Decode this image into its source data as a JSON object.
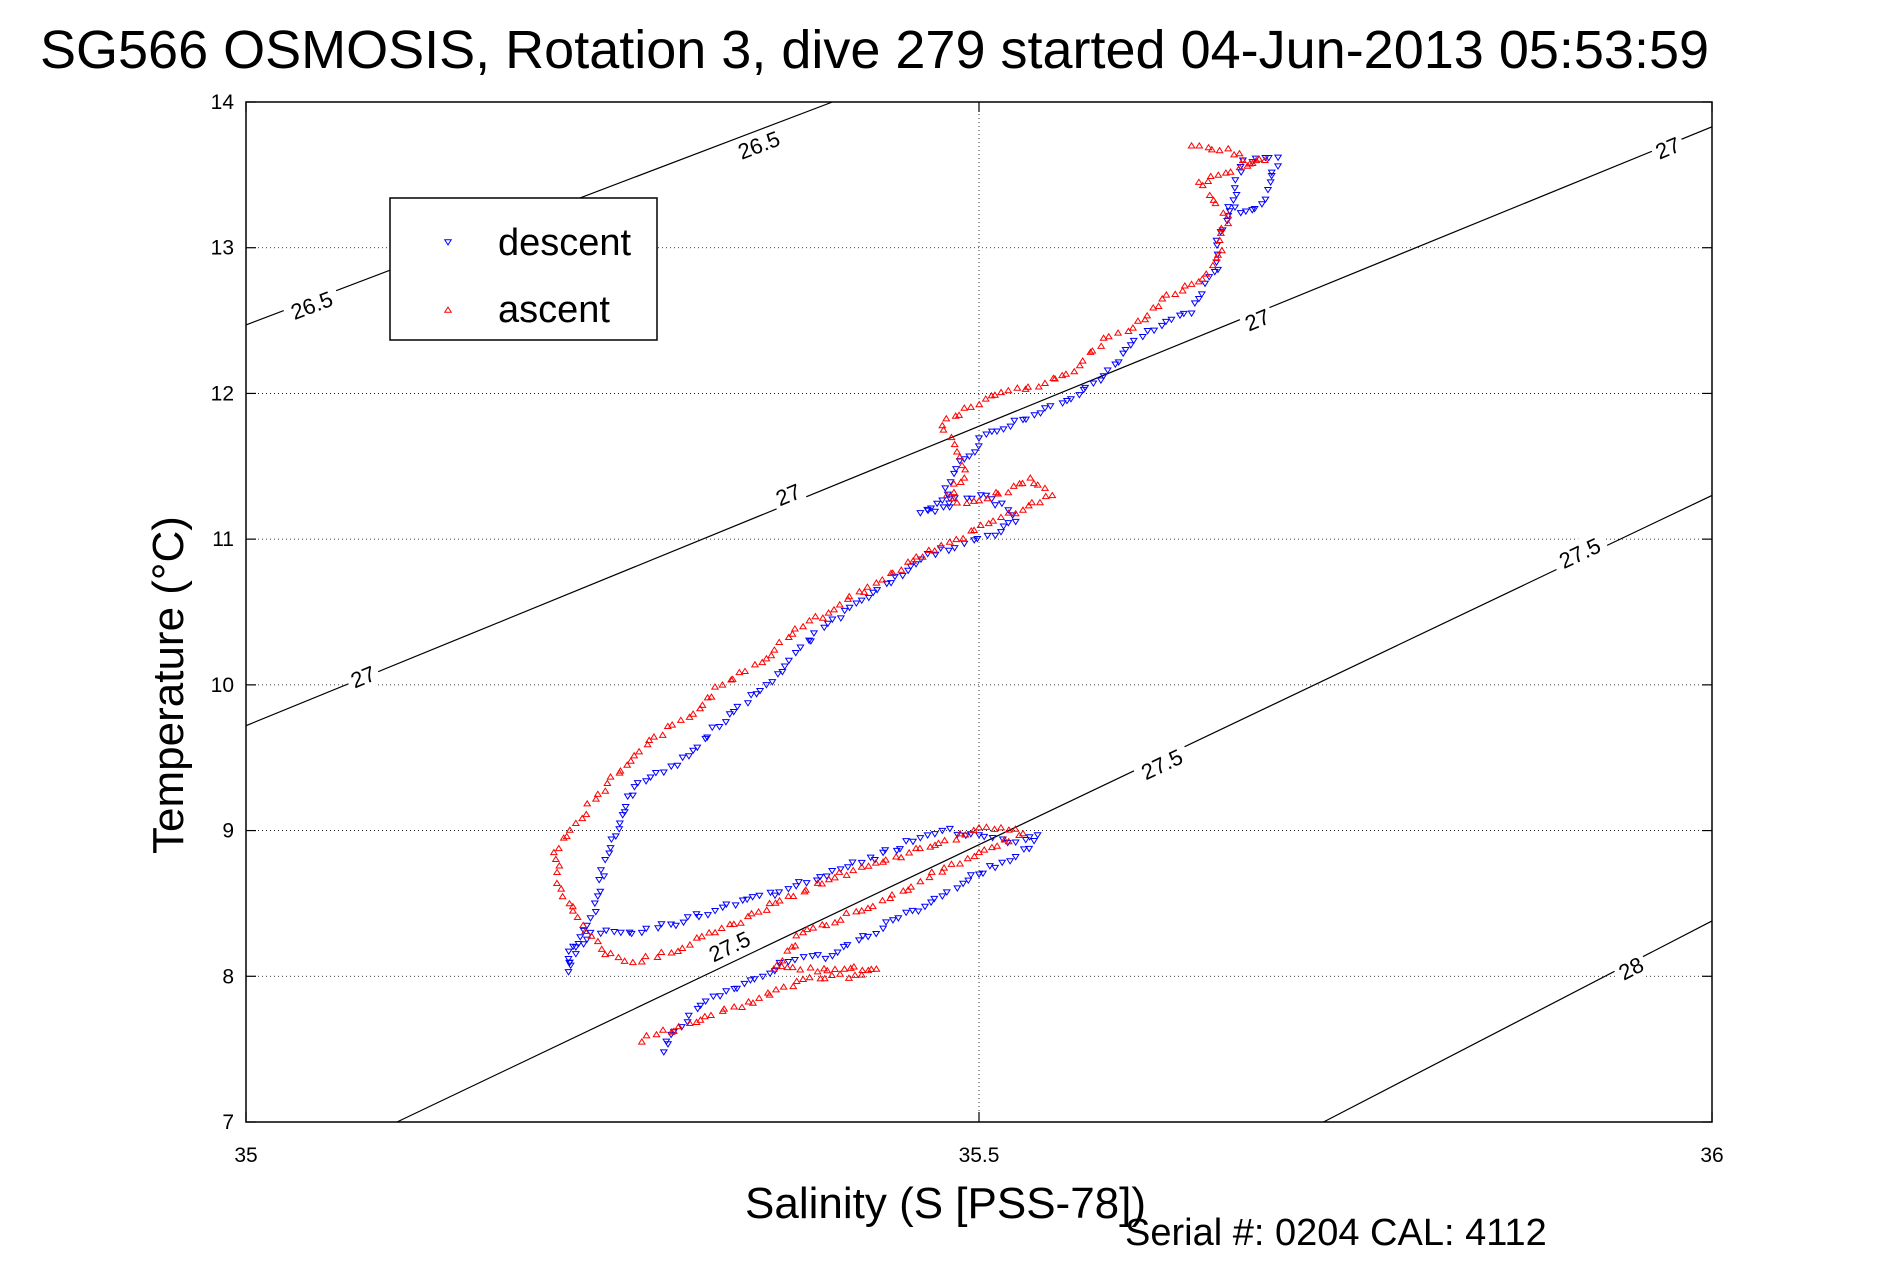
{
  "chart_data": {
    "type": "scatter",
    "title": "SG566 OSMOSIS, Rotation 3, dive 279 started 04-Jun-2013 05:53:59",
    "xlabel": "Salinity (S [PSS-78])",
    "ylabel": "Temperature (°C)",
    "xlim": [
      35,
      36
    ],
    "ylim": [
      7,
      14
    ],
    "xticks": [
      "35",
      "35.5",
      "36"
    ],
    "yticks": [
      "7",
      "8",
      "9",
      "10",
      "11",
      "12",
      "13",
      "14"
    ],
    "grid": true,
    "legend": {
      "position": "top-left",
      "entries": [
        "descent",
        "ascent"
      ]
    },
    "colors": {
      "descent": "#0000ff",
      "ascent": "#ff0000",
      "axis": "#000000",
      "contour": "#000000"
    },
    "density_contours": [
      {
        "level": "26.5",
        "points": [
          [
            35.0,
            12.47
          ],
          [
            35.4,
            14.0
          ]
        ]
      },
      {
        "level": "27",
        "points": [
          [
            35.0,
            9.72
          ],
          [
            36.0,
            13.83
          ]
        ]
      },
      {
        "level": "27.5",
        "points": [
          [
            35.103,
            7.0
          ],
          [
            36.0,
            11.3
          ]
        ]
      },
      {
        "level": "28",
        "points": [
          [
            35.735,
            7.0
          ],
          [
            36.0,
            8.38
          ]
        ]
      }
    ],
    "contour_labels": [
      {
        "text": "26.5",
        "x": 35.35,
        "y": 13.7
      },
      {
        "text": "26.5",
        "x": 35.045,
        "y": 12.6
      },
      {
        "text": "27",
        "x": 35.69,
        "y": 12.5
      },
      {
        "text": "27",
        "x": 35.37,
        "y": 11.3
      },
      {
        "text": "27",
        "x": 35.08,
        "y": 10.05
      },
      {
        "text": "27",
        "x": 35.97,
        "y": 13.68
      },
      {
        "text": "27.5",
        "x": 35.91,
        "y": 10.9
      },
      {
        "text": "27.5",
        "x": 35.625,
        "y": 9.45
      },
      {
        "text": "27.5",
        "x": 35.33,
        "y": 8.2
      },
      {
        "text": "28",
        "x": 35.945,
        "y": 8.05
      }
    ],
    "series": [
      {
        "name": "descent",
        "marker": "triangle-down",
        "x": [
          35.67,
          35.682,
          35.693,
          35.704,
          35.68,
          35.67,
          35.662,
          35.662,
          35.663,
          35.657,
          35.65,
          35.645,
          35.615,
          35.6,
          35.593,
          35.585,
          35.578,
          35.56,
          35.545,
          35.53,
          35.505,
          35.49,
          35.483,
          35.477,
          35.48,
          35.47,
          35.46,
          35.48,
          35.505,
          35.52,
          35.525,
          35.515,
          35.49,
          35.465,
          35.44,
          35.42,
          35.4,
          35.375,
          35.355,
          35.33,
          35.305,
          35.285,
          35.265,
          35.255,
          35.245,
          35.24,
          35.235,
          35.228,
          35.22,
          35.22,
          35.225,
          35.235,
          35.27,
          35.32,
          35.37,
          35.42,
          35.46,
          35.475,
          35.5,
          35.525,
          35.54,
          35.525,
          35.5,
          35.475,
          35.445,
          35.4,
          35.37,
          35.34,
          35.31,
          35.29,
          35.285
        ],
        "y": [
          13.28,
          13.25,
          13.3,
          13.62,
          13.6,
          13.22,
          13.05,
          12.9,
          12.85,
          12.8,
          12.65,
          12.55,
          12.43,
          12.3,
          12.2,
          12.12,
          12.07,
          11.95,
          11.9,
          11.82,
          11.72,
          11.55,
          11.45,
          11.35,
          11.22,
          11.19,
          11.18,
          11.28,
          11.3,
          11.2,
          11.12,
          11.05,
          10.97,
          10.9,
          10.7,
          10.58,
          10.45,
          10.22,
          10.0,
          9.8,
          9.55,
          9.4,
          9.3,
          9.05,
          8.8,
          8.55,
          8.4,
          8.27,
          8.12,
          8.03,
          8.2,
          8.3,
          8.3,
          8.45,
          8.6,
          8.78,
          8.95,
          9.0,
          8.97,
          8.92,
          8.97,
          8.82,
          8.7,
          8.55,
          8.4,
          8.14,
          8.1,
          7.95,
          7.8,
          7.6,
          7.48
        ]
      },
      {
        "name": "ascent",
        "marker": "triangle-up",
        "x": [
          35.645,
          35.67,
          35.68,
          35.695,
          35.65,
          35.67,
          35.665,
          35.663,
          35.655,
          35.645,
          35.625,
          35.605,
          35.585,
          35.565,
          35.545,
          35.52,
          35.49,
          35.475,
          35.485,
          35.49,
          35.478,
          35.485,
          35.52,
          35.535,
          35.545,
          35.55,
          35.53,
          35.515,
          35.48,
          35.455,
          35.43,
          35.405,
          35.38,
          35.355,
          35.325,
          35.305,
          35.275,
          35.26,
          35.24,
          35.225,
          35.21,
          35.215,
          35.23,
          35.245,
          35.27,
          35.32,
          35.37,
          35.42,
          35.47,
          35.5,
          35.515,
          35.53,
          35.5,
          35.46,
          35.42,
          35.38,
          35.36,
          35.43,
          35.42,
          35.38,
          35.35,
          35.31,
          35.28,
          35.27
        ],
        "y": [
          13.7,
          13.68,
          13.6,
          13.6,
          13.45,
          13.22,
          13.1,
          12.95,
          12.82,
          12.75,
          12.65,
          12.45,
          12.38,
          12.15,
          12.07,
          12.02,
          11.9,
          11.78,
          11.6,
          11.42,
          11.3,
          11.25,
          11.32,
          11.42,
          11.35,
          11.3,
          11.2,
          11.15,
          10.98,
          10.85,
          10.7,
          10.55,
          10.4,
          10.18,
          10.0,
          9.8,
          9.62,
          9.45,
          9.25,
          9.05,
          8.85,
          8.6,
          8.35,
          8.15,
          8.1,
          8.3,
          8.55,
          8.75,
          8.9,
          9.02,
          9.02,
          8.98,
          8.85,
          8.65,
          8.45,
          8.3,
          8.05,
          8.05,
          8.01,
          7.98,
          7.85,
          7.7,
          7.6,
          7.55
        ]
      }
    ],
    "annotations": {
      "serial": "Serial #: 0204  CAL: 4112"
    }
  }
}
